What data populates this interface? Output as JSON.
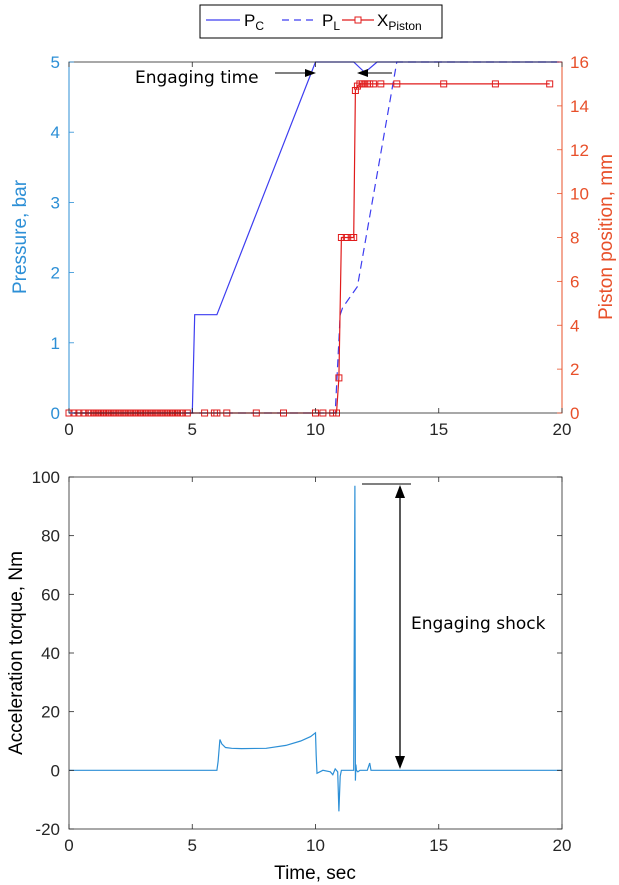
{
  "colors": {
    "blue_axis": "#2c8fd6",
    "orange_axis": "#e8502a",
    "pc": "#3d3df0",
    "pl": "#3d3df0",
    "piston": "#e01b1b",
    "torque": "#2c8fd6",
    "black": "#000000"
  },
  "legend": {
    "pc": {
      "main": "P",
      "sub": "C"
    },
    "pl": {
      "main": "P",
      "sub": "L"
    },
    "piston": {
      "main": "X",
      "sub": "Piston"
    }
  },
  "chart_data": [
    {
      "type": "line",
      "xlim": [
        0,
        20
      ],
      "ylim_left": [
        0,
        5
      ],
      "ylim_right": [
        0,
        16
      ],
      "xticks": [
        0,
        5,
        10,
        15,
        20
      ],
      "yticks_left": [
        0,
        1,
        2,
        3,
        4,
        5
      ],
      "yticks_right": [
        0,
        2,
        4,
        6,
        8,
        10,
        12,
        14,
        16
      ],
      "ylabel_left": "Pressure, bar",
      "ylabel_right": "Piston position, mm",
      "annotation": "Engaging time",
      "series": [
        {
          "name": "P_C",
          "axis": "left",
          "style": "solid",
          "x": [
            0,
            5.0,
            5.1,
            6.0,
            10.0,
            10.75,
            11.55,
            12.0,
            12.5,
            20
          ],
          "y": [
            0,
            0,
            1.4,
            1.4,
            5.0,
            5.0,
            5.0,
            4.85,
            5.0,
            5.0
          ]
        },
        {
          "name": "P_L",
          "axis": "left",
          "style": "dashed",
          "x": [
            0,
            10.8,
            11.0,
            11.1,
            11.7,
            13.3,
            20
          ],
          "y": [
            0,
            0,
            1.4,
            1.5,
            1.8,
            5.0,
            5.0
          ]
        },
        {
          "name": "X_Piston",
          "axis": "right",
          "style": "solid-square",
          "x": [
            0,
            0.2,
            0.4,
            0.6,
            0.8,
            0.9,
            1.0,
            1.1,
            1.2,
            1.3,
            1.4,
            1.5,
            1.6,
            1.7,
            1.8,
            1.9,
            2.0,
            2.1,
            2.2,
            2.3,
            2.4,
            2.5,
            2.6,
            2.7,
            2.8,
            2.9,
            3.0,
            3.1,
            3.2,
            3.3,
            3.4,
            3.5,
            3.6,
            3.7,
            3.8,
            3.9,
            4.0,
            4.1,
            4.2,
            4.3,
            4.4,
            4.5,
            4.6,
            4.8,
            5.5,
            5.9,
            6.0,
            6.4,
            7.6,
            8.7,
            10.0,
            10.3,
            10.7,
            10.85,
            10.95,
            11.05,
            11.25,
            11.45,
            11.55,
            11.62,
            11.7,
            11.8,
            11.9,
            12.0,
            12.1,
            12.2,
            12.35,
            12.65,
            13.3,
            15.2,
            17.3,
            19.5
          ],
          "y": [
            0,
            0,
            0,
            0,
            0,
            0,
            0,
            0,
            0,
            0,
            0,
            0,
            0,
            0,
            0,
            0,
            0,
            0,
            0,
            0,
            0,
            0,
            0,
            0,
            0,
            0,
            0,
            0,
            0,
            0,
            0,
            0,
            0,
            0,
            0,
            0,
            0,
            0,
            0,
            0,
            0,
            0,
            0,
            0,
            0,
            0,
            0,
            0,
            0,
            0,
            0,
            0,
            0,
            0,
            1.6,
            8.0,
            8.0,
            8.0,
            8.0,
            14.7,
            14.9,
            15.0,
            15.0,
            15.0,
            15.0,
            15.0,
            15.0,
            15.0,
            15.0,
            15.0,
            15.0,
            15.0
          ]
        }
      ]
    },
    {
      "type": "line",
      "xlim": [
        0,
        20
      ],
      "ylim": [
        -20,
        100
      ],
      "xticks": [
        0,
        5,
        10,
        15,
        20
      ],
      "yticks": [
        -20,
        0,
        20,
        40,
        60,
        80,
        100
      ],
      "xlabel": "Time, sec",
      "ylabel": "Acceleration torque, Nm",
      "annotation": "Engaging shock",
      "series": [
        {
          "name": "Torque",
          "x": [
            0,
            6.0,
            6.05,
            6.12,
            6.2,
            6.35,
            6.6,
            7.0,
            8.0,
            8.8,
            9.4,
            9.8,
            10.0,
            10.03,
            10.06,
            10.3,
            10.6,
            10.7,
            10.8,
            10.9,
            10.95,
            11.0,
            11.05,
            11.15,
            11.4,
            11.55,
            11.6,
            11.62,
            11.64,
            11.66,
            11.72,
            11.8,
            12.1,
            12.2,
            12.25,
            12.3,
            12.5,
            15,
            20
          ],
          "y": [
            0,
            0,
            3,
            10.5,
            9,
            7.8,
            7.5,
            7.4,
            7.5,
            8.5,
            10,
            11.5,
            12.8,
            5,
            -1,
            0,
            -0.5,
            -1.5,
            0.5,
            -0.5,
            -14,
            -2,
            0,
            0,
            0,
            0,
            97,
            -3.5,
            2,
            0,
            -0.5,
            0,
            0,
            2.5,
            0,
            0,
            0,
            0,
            0
          ]
        }
      ]
    }
  ]
}
